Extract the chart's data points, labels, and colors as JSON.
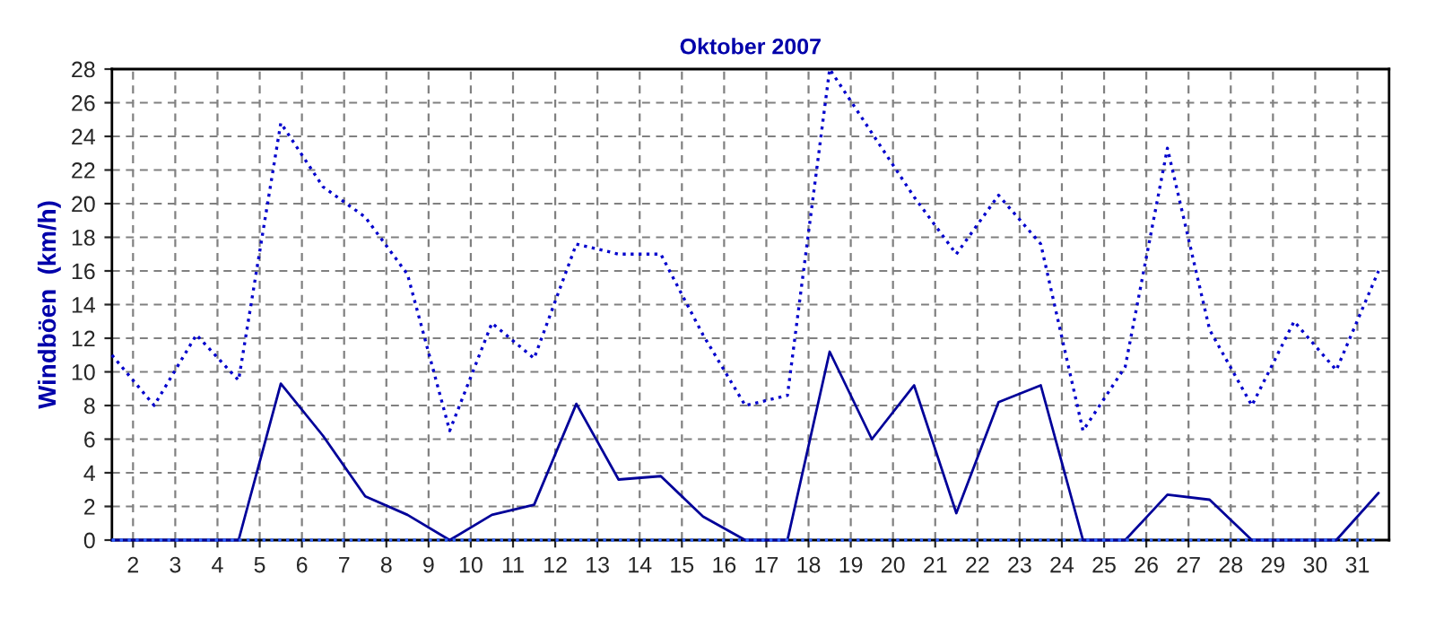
{
  "chart_data": {
    "type": "line",
    "title": "Oktober 2007",
    "ylabel": "Windböen  (km/h)",
    "x": [
      1.5,
      2.5,
      3.5,
      4.5,
      5.5,
      6.5,
      7.5,
      8.5,
      9.5,
      10.5,
      11.5,
      12.5,
      13.5,
      14.5,
      15.5,
      16.5,
      17.5,
      18.5,
      19.5,
      20.5,
      21.5,
      22.5,
      23.5,
      24.5,
      25.5,
      26.5,
      27.5,
      28.5,
      29.5,
      30.5,
      31.5
    ],
    "series": [
      {
        "color": "#0000cc",
        "line_style": "dotted",
        "values": [
          11,
          8,
          12.2,
          9.5,
          24.8,
          21,
          19.2,
          15.8,
          6.5,
          12.9,
          10.8,
          17.6,
          17,
          17,
          12.2,
          8,
          8.6,
          28,
          24.2,
          20.4,
          17,
          20.5,
          17.6,
          6.5,
          10.3,
          23.3,
          12.5,
          8,
          13,
          10.1,
          16
        ]
      },
      {
        "color": "#000099",
        "line_style": "solid",
        "values": [
          0,
          0,
          0,
          0,
          9.3,
          6.2,
          2.6,
          1.5,
          0,
          1.5,
          2.1,
          8.1,
          3.6,
          3.8,
          1.4,
          0,
          0,
          11.2,
          6,
          9.2,
          1.6,
          8.2,
          9.2,
          0,
          0,
          2.7,
          2.4,
          0,
          0,
          0,
          2.8
        ]
      },
      {
        "color": "#3366ff",
        "line_style": "dotted",
        "values": [
          0,
          0,
          0,
          0,
          0,
          0,
          0,
          0,
          0,
          0,
          0,
          0,
          0,
          0,
          0,
          0,
          0,
          0,
          0,
          0,
          0,
          0,
          0,
          0,
          0,
          0,
          0,
          0,
          0,
          0,
          0
        ]
      }
    ],
    "xlim": [
      1.5,
      31.75
    ],
    "xticks": [
      2,
      3,
      4,
      5,
      6,
      7,
      8,
      9,
      10,
      11,
      12,
      13,
      14,
      15,
      16,
      17,
      18,
      19,
      20,
      21,
      22,
      23,
      24,
      25,
      26,
      27,
      28,
      29,
      30,
      31
    ],
    "ylim": [
      0,
      28
    ],
    "yticks": [
      0,
      2,
      4,
      6,
      8,
      10,
      12,
      14,
      16,
      18,
      20,
      22,
      24,
      26,
      28
    ],
    "grid": true,
    "marker": "none"
  }
}
